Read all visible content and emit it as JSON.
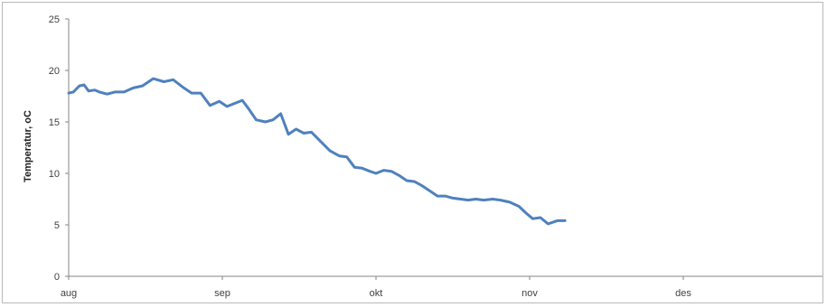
{
  "chart_data": {
    "type": "line",
    "title": "",
    "xlabel": "",
    "ylabel": "Temperatur, oC",
    "ylim": [
      0,
      25
    ],
    "yticks": [
      "0",
      "5",
      "10",
      "15",
      "20",
      "25"
    ],
    "xticks": [
      "aug",
      "sep",
      "okt",
      "nov",
      "des"
    ],
    "xlim": [
      0,
      5
    ],
    "grid": false,
    "legend": "none",
    "series": [
      {
        "color": "#4f81bd",
        "x": [
          0.0,
          0.03,
          0.07,
          0.1,
          0.13,
          0.17,
          0.2,
          0.25,
          0.3,
          0.36,
          0.42,
          0.48,
          0.55,
          0.62,
          0.68,
          0.75,
          0.8,
          0.86,
          0.92,
          0.98,
          1.03,
          1.08,
          1.13,
          1.17,
          1.22,
          1.28,
          1.33,
          1.38,
          1.43,
          1.48,
          1.53,
          1.58,
          1.64,
          1.7,
          1.76,
          1.81,
          1.86,
          1.91,
          1.96,
          2.0,
          2.05,
          2.1,
          2.15,
          2.2,
          2.25,
          2.3,
          2.35,
          2.4,
          2.45,
          2.5,
          2.55,
          2.6,
          2.65,
          2.7,
          2.76,
          2.81,
          2.87,
          2.93,
          2.98,
          3.02,
          3.07,
          3.12,
          3.18,
          3.23,
          3.28,
          3.34,
          3.39,
          3.44,
          3.49,
          3.54,
          3.59,
          3.64,
          3.69,
          3.74,
          3.79,
          3.83,
          3.88,
          3.92,
          3.96,
          3.99
        ],
        "y": [
          17.8,
          17.9,
          18.5,
          18.6,
          18.0,
          18.1,
          17.9,
          17.7,
          17.9,
          17.9,
          18.3,
          18.5,
          19.2,
          18.9,
          19.1,
          18.3,
          17.8,
          17.8,
          16.6,
          17.0,
          16.5,
          16.8,
          17.1,
          16.3,
          15.2,
          15.0,
          15.2,
          15.8,
          13.8,
          14.3,
          13.9,
          14.0,
          13.1,
          12.2,
          11.7,
          11.6,
          10.6,
          10.5,
          10.2,
          10.0,
          10.3,
          10.2,
          9.8,
          9.3,
          9.2,
          8.8,
          8.3,
          7.8,
          7.8,
          7.6,
          7.5,
          7.4,
          7.5,
          7.4,
          7.5,
          7.4,
          7.2,
          6.8,
          6.1,
          5.6,
          5.7,
          5.1,
          5.4,
          5.4,
          null,
          null,
          null,
          null,
          null,
          null,
          null,
          null,
          null,
          null,
          null,
          null,
          null,
          null,
          null,
          null
        ]
      }
    ]
  }
}
